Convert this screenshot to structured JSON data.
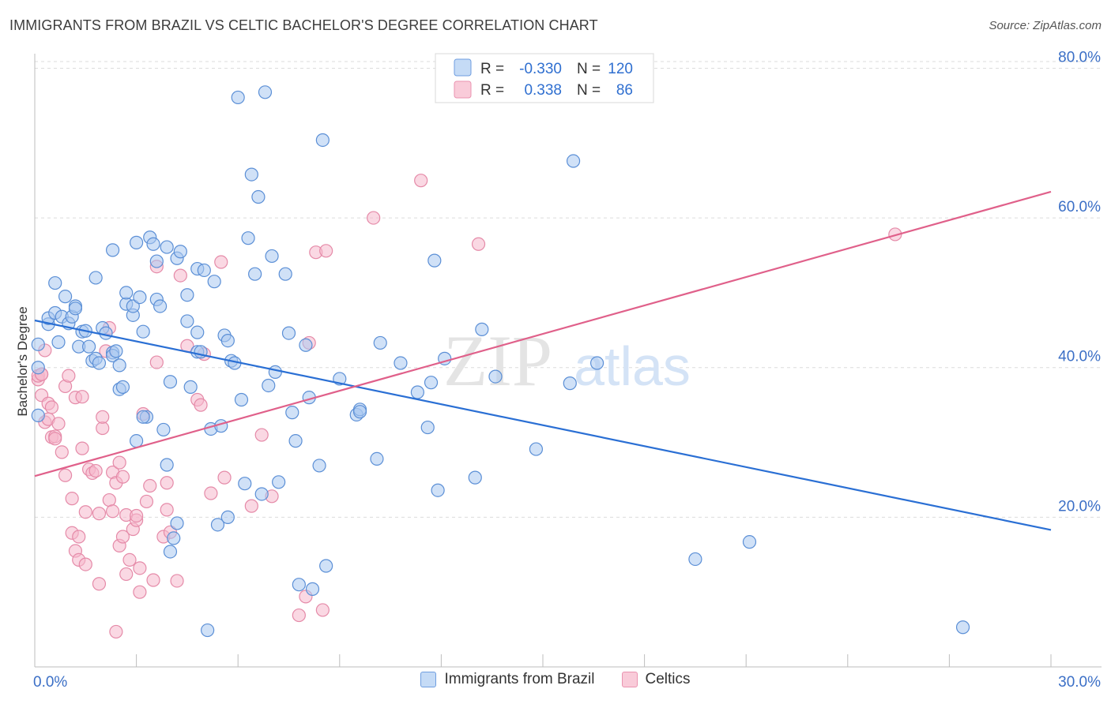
{
  "title": "IMMIGRANTS FROM BRAZIL VS CELTIC BACHELOR'S DEGREE CORRELATION CHART",
  "source": "Source: ZipAtlas.com",
  "watermark": {
    "zip": "ZIP",
    "atlas": "atlas"
  },
  "legend_top": [
    {
      "r_label": "R =",
      "r_value": "-0.330",
      "n_label": "N =",
      "n_value": "120"
    },
    {
      "r_label": "R =",
      "r_value": "0.338",
      "n_label": "N =",
      "n_value": "86"
    }
  ],
  "colors": {
    "blue_fill": "#a9c8f0",
    "blue_stroke": "#5b8fd6",
    "blue_line": "#2a6fd4",
    "pink_fill": "#f6b8cc",
    "pink_stroke": "#e58aa8",
    "pink_line": "#e0608a",
    "axis_text": "#3b6fc6",
    "grid": "#dcdcdc"
  },
  "chart_data": {
    "type": "scatter",
    "title": "IMMIGRANTS FROM BRAZIL VS CELTIC BACHELOR'S DEGREE CORRELATION CHART",
    "xlabel": "",
    "ylabel": "Bachelor's Degree",
    "xlim": [
      0,
      30
    ],
    "ylim": [
      0,
      83
    ],
    "x_tick_labels": [
      {
        "value": 0,
        "label": "0.0%"
      },
      {
        "value": 30,
        "label": "30.0%"
      }
    ],
    "y_tick_labels": [
      {
        "value": 20,
        "label": "20.0%"
      },
      {
        "value": 40,
        "label": "40.0%"
      },
      {
        "value": 60,
        "label": "60.0%"
      },
      {
        "value": 80,
        "label": "80.0%"
      }
    ],
    "series": [
      {
        "name": "Immigrants from Brazil",
        "color": "blue",
        "trend": {
          "x1": 0,
          "y1": 46.3,
          "x2": 30,
          "y2": 18.3
        },
        "points": [
          [
            0.1,
            33.6
          ],
          [
            0.1,
            43.1
          ],
          [
            0.1,
            40.0
          ],
          [
            0.4,
            45.8
          ],
          [
            0.4,
            46.6
          ],
          [
            0.6,
            47.3
          ],
          [
            0.6,
            51.3
          ],
          [
            0.7,
            43.4
          ],
          [
            0.8,
            46.8
          ],
          [
            0.9,
            49.5
          ],
          [
            1.0,
            45.9
          ],
          [
            1.1,
            46.8
          ],
          [
            1.2,
            48.2
          ],
          [
            1.2,
            47.9
          ],
          [
            1.3,
            42.8
          ],
          [
            1.4,
            44.8
          ],
          [
            1.5,
            44.9
          ],
          [
            1.6,
            42.8
          ],
          [
            1.7,
            40.9
          ],
          [
            1.8,
            41.2
          ],
          [
            1.8,
            52.0
          ],
          [
            1.9,
            40.6
          ],
          [
            2.0,
            45.3
          ],
          [
            2.1,
            44.6
          ],
          [
            2.3,
            42.0
          ],
          [
            2.3,
            41.6
          ],
          [
            2.3,
            55.7
          ],
          [
            2.4,
            42.2
          ],
          [
            2.5,
            40.3
          ],
          [
            2.5,
            37.1
          ],
          [
            2.6,
            37.4
          ],
          [
            2.7,
            48.5
          ],
          [
            2.7,
            50.0
          ],
          [
            2.9,
            47.0
          ],
          [
            2.9,
            48.2
          ],
          [
            3.0,
            30.2
          ],
          [
            3.0,
            56.7
          ],
          [
            3.1,
            49.4
          ],
          [
            3.2,
            44.8
          ],
          [
            3.3,
            33.4
          ],
          [
            3.4,
            57.4
          ],
          [
            3.5,
            56.5
          ],
          [
            3.6,
            49.1
          ],
          [
            3.6,
            54.2
          ],
          [
            3.7,
            48.2
          ],
          [
            3.8,
            31.7
          ],
          [
            3.9,
            56.1
          ],
          [
            3.9,
            27.0
          ],
          [
            4.0,
            38.1
          ],
          [
            4.0,
            15.4
          ],
          [
            4.1,
            17.2
          ],
          [
            4.2,
            19.2
          ],
          [
            4.2,
            54.6
          ],
          [
            4.3,
            55.5
          ],
          [
            4.5,
            46.2
          ],
          [
            4.5,
            49.7
          ],
          [
            4.6,
            37.4
          ],
          [
            4.8,
            44.7
          ],
          [
            4.8,
            42.1
          ],
          [
            4.8,
            53.2
          ],
          [
            4.9,
            42.1
          ],
          [
            5.0,
            53.0
          ],
          [
            5.1,
            4.9
          ],
          [
            5.2,
            31.8
          ],
          [
            5.3,
            51.5
          ],
          [
            5.4,
            19.0
          ],
          [
            5.5,
            32.2
          ],
          [
            5.6,
            44.3
          ],
          [
            5.7,
            43.6
          ],
          [
            5.7,
            20.0
          ],
          [
            5.8,
            40.9
          ],
          [
            5.9,
            40.6
          ],
          [
            6.0,
            76.1
          ],
          [
            6.1,
            35.7
          ],
          [
            6.2,
            24.5
          ],
          [
            6.3,
            57.3
          ],
          [
            6.4,
            65.8
          ],
          [
            6.5,
            52.5
          ],
          [
            6.6,
            62.8
          ],
          [
            6.7,
            23.1
          ],
          [
            6.8,
            76.8
          ],
          [
            6.9,
            37.6
          ],
          [
            7.0,
            54.9
          ],
          [
            7.1,
            39.4
          ],
          [
            7.2,
            24.7
          ],
          [
            7.4,
            52.5
          ],
          [
            7.5,
            44.6
          ],
          [
            7.6,
            34.0
          ],
          [
            7.7,
            30.2
          ],
          [
            7.8,
            11.0
          ],
          [
            8.0,
            43.0
          ],
          [
            8.1,
            36.0
          ],
          [
            8.2,
            10.4
          ],
          [
            8.4,
            26.9
          ],
          [
            8.5,
            70.4
          ],
          [
            8.6,
            13.5
          ],
          [
            9.0,
            38.5
          ],
          [
            9.5,
            33.7
          ],
          [
            9.6,
            34.4
          ],
          [
            9.6,
            34.1
          ],
          [
            10.1,
            27.8
          ],
          [
            10.2,
            43.3
          ],
          [
            10.8,
            40.6
          ],
          [
            11.3,
            36.7
          ],
          [
            11.6,
            32.0
          ],
          [
            11.7,
            38.0
          ],
          [
            11.8,
            54.3
          ],
          [
            11.9,
            23.6
          ],
          [
            12.1,
            41.2
          ],
          [
            13.0,
            25.3
          ],
          [
            13.2,
            45.1
          ],
          [
            13.6,
            38.8
          ],
          [
            14.8,
            29.1
          ],
          [
            15.8,
            37.9
          ],
          [
            15.9,
            67.6
          ],
          [
            16.6,
            40.6
          ],
          [
            19.5,
            14.4
          ],
          [
            21.1,
            16.7
          ],
          [
            27.4,
            5.3
          ],
          [
            3.2,
            33.4
          ]
        ]
      },
      {
        "name": "Celtics",
        "color": "pink",
        "trend": {
          "x1": 0,
          "y1": 25.5,
          "x2": 30,
          "y2": 63.5
        },
        "points": [
          [
            0.1,
            38.4
          ],
          [
            0.1,
            38.9
          ],
          [
            0.2,
            39.1
          ],
          [
            0.2,
            36.3
          ],
          [
            0.3,
            42.3
          ],
          [
            0.3,
            32.7
          ],
          [
            0.4,
            33.1
          ],
          [
            0.4,
            35.2
          ],
          [
            0.5,
            30.7
          ],
          [
            0.5,
            34.7
          ],
          [
            0.6,
            30.8
          ],
          [
            0.6,
            30.5
          ],
          [
            0.7,
            32.5
          ],
          [
            0.8,
            28.7
          ],
          [
            0.9,
            25.6
          ],
          [
            0.9,
            37.5
          ],
          [
            1.0,
            38.9
          ],
          [
            1.1,
            22.5
          ],
          [
            1.1,
            17.9
          ],
          [
            1.2,
            36.0
          ],
          [
            1.2,
            15.5
          ],
          [
            1.3,
            14.3
          ],
          [
            1.3,
            17.4
          ],
          [
            1.4,
            29.2
          ],
          [
            1.4,
            36.1
          ],
          [
            1.5,
            20.7
          ],
          [
            1.5,
            13.7
          ],
          [
            1.6,
            26.4
          ],
          [
            1.7,
            25.9
          ],
          [
            1.8,
            26.2
          ],
          [
            1.9,
            11.1
          ],
          [
            1.9,
            20.5
          ],
          [
            2.0,
            31.9
          ],
          [
            2.0,
            33.4
          ],
          [
            2.1,
            42.2
          ],
          [
            2.2,
            22.3
          ],
          [
            2.2,
            45.3
          ],
          [
            2.3,
            20.8
          ],
          [
            2.3,
            26.0
          ],
          [
            2.4,
            24.6
          ],
          [
            2.4,
            4.7
          ],
          [
            2.5,
            27.3
          ],
          [
            2.5,
            16.2
          ],
          [
            2.6,
            25.4
          ],
          [
            2.6,
            17.4
          ],
          [
            2.7,
            12.4
          ],
          [
            2.7,
            20.3
          ],
          [
            2.8,
            14.3
          ],
          [
            2.9,
            18.4
          ],
          [
            3.0,
            19.6
          ],
          [
            3.0,
            20.2
          ],
          [
            3.1,
            10.0
          ],
          [
            3.1,
            13.2
          ],
          [
            3.2,
            33.8
          ],
          [
            3.3,
            22.1
          ],
          [
            3.4,
            24.2
          ],
          [
            3.5,
            11.6
          ],
          [
            3.6,
            53.5
          ],
          [
            3.6,
            40.7
          ],
          [
            3.8,
            17.4
          ],
          [
            3.9,
            24.6
          ],
          [
            3.9,
            21.0
          ],
          [
            4.0,
            18.0
          ],
          [
            4.2,
            11.5
          ],
          [
            4.3,
            52.3
          ],
          [
            4.5,
            42.9
          ],
          [
            4.8,
            35.7
          ],
          [
            4.9,
            35.0
          ],
          [
            5.0,
            41.8
          ],
          [
            5.2,
            23.2
          ],
          [
            5.5,
            54.1
          ],
          [
            5.6,
            25.3
          ],
          [
            6.4,
            21.5
          ],
          [
            6.7,
            31.0
          ],
          [
            7.0,
            22.8
          ],
          [
            7.8,
            6.9
          ],
          [
            8.0,
            9.4
          ],
          [
            8.1,
            43.3
          ],
          [
            8.3,
            55.4
          ],
          [
            8.5,
            7.6
          ],
          [
            8.6,
            55.6
          ],
          [
            10.0,
            60.0
          ],
          [
            11.4,
            65.0
          ],
          [
            13.1,
            56.5
          ],
          [
            25.4,
            57.8
          ],
          [
            0.2,
            39.1
          ]
        ]
      }
    ]
  }
}
